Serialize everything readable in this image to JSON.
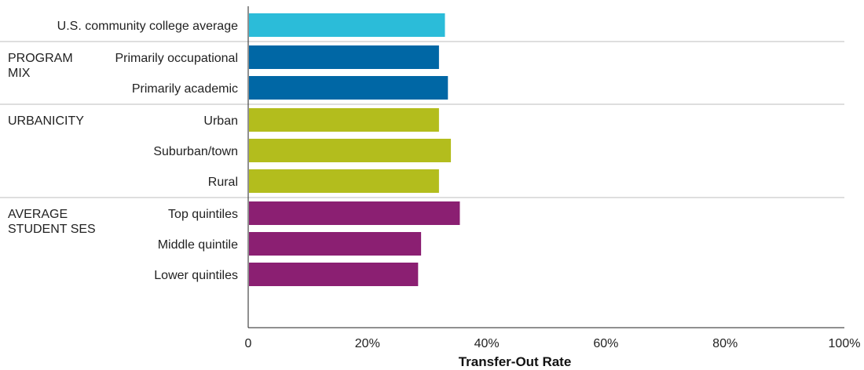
{
  "chart_data": {
    "type": "bar",
    "orientation": "horizontal",
    "xlabel": "Transfer-Out Rate",
    "xlim": [
      0,
      100
    ],
    "x_ticks": [
      {
        "value": 0,
        "label": "0"
      },
      {
        "value": 20,
        "label": "20%"
      },
      {
        "value": 40,
        "label": "40%"
      },
      {
        "value": 60,
        "label": "60%"
      },
      {
        "value": 80,
        "label": "80%"
      },
      {
        "value": 100,
        "label": "100%"
      }
    ],
    "grid": false,
    "groups": [
      {
        "label_lines": [],
        "color": "#2bbcd9",
        "bars": [
          {
            "category": "U.S. community college average",
            "value": 33
          }
        ]
      },
      {
        "label_lines": [
          "PROGRAM",
          "MIX"
        ],
        "color": "#0067a5",
        "bars": [
          {
            "category": "Primarily occupational",
            "value": 32
          },
          {
            "category": "Primarily academic",
            "value": 33.5
          }
        ]
      },
      {
        "label_lines": [
          "URBANICITY"
        ],
        "color": "#b3bd1d",
        "bars": [
          {
            "category": "Urban",
            "value": 32
          },
          {
            "category": "Suburban/town",
            "value": 34
          },
          {
            "category": "Rural",
            "value": 32
          }
        ]
      },
      {
        "label_lines": [
          "AVERAGE",
          "STUDENT SES"
        ],
        "color": "#8b1f72",
        "bars": [
          {
            "category": "Top quintiles",
            "value": 35.5
          },
          {
            "category": "Middle quintile",
            "value": 29
          },
          {
            "category": "Lower quintiles",
            "value": 28.5
          }
        ]
      }
    ]
  }
}
